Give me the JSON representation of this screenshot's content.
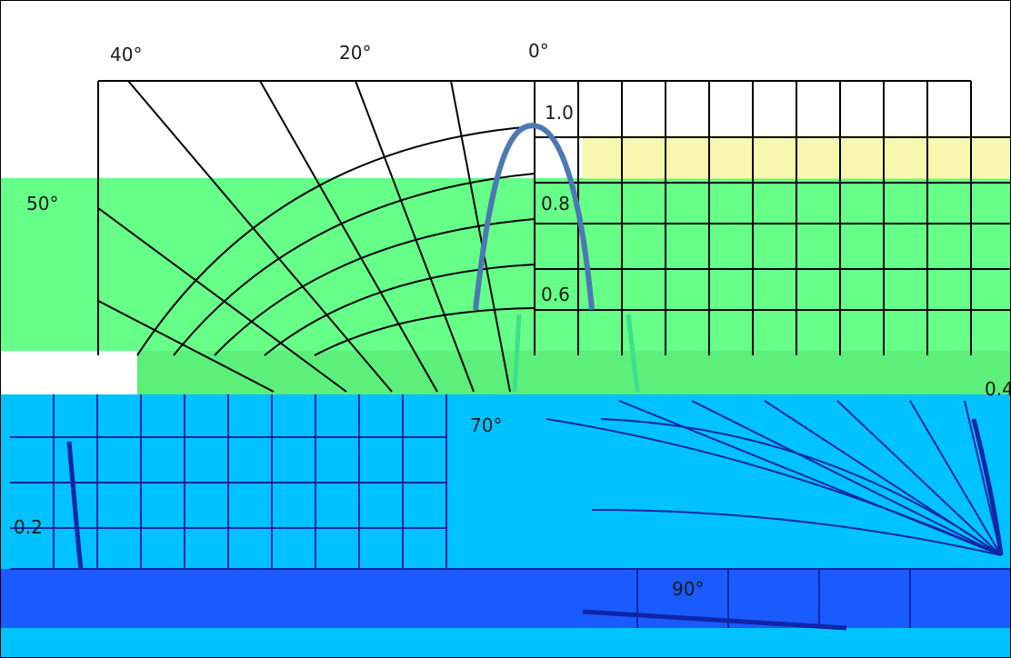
{
  "angle_labels": {
    "a40": "40°",
    "a20": "20°",
    "a0": "0°",
    "a50": "50°",
    "a70": "70°",
    "a90": "90°"
  },
  "radial_labels": {
    "r10": "1.0",
    "r08": "0.8",
    "r06": "0.6",
    "r04": "0.4",
    "r02": "0.2"
  },
  "bands": {
    "green": "#66ff88",
    "blue": "#00c2ff",
    "deep_blue": "#1a5bff",
    "curve": "#4e78b4",
    "grid": "#000000"
  }
}
